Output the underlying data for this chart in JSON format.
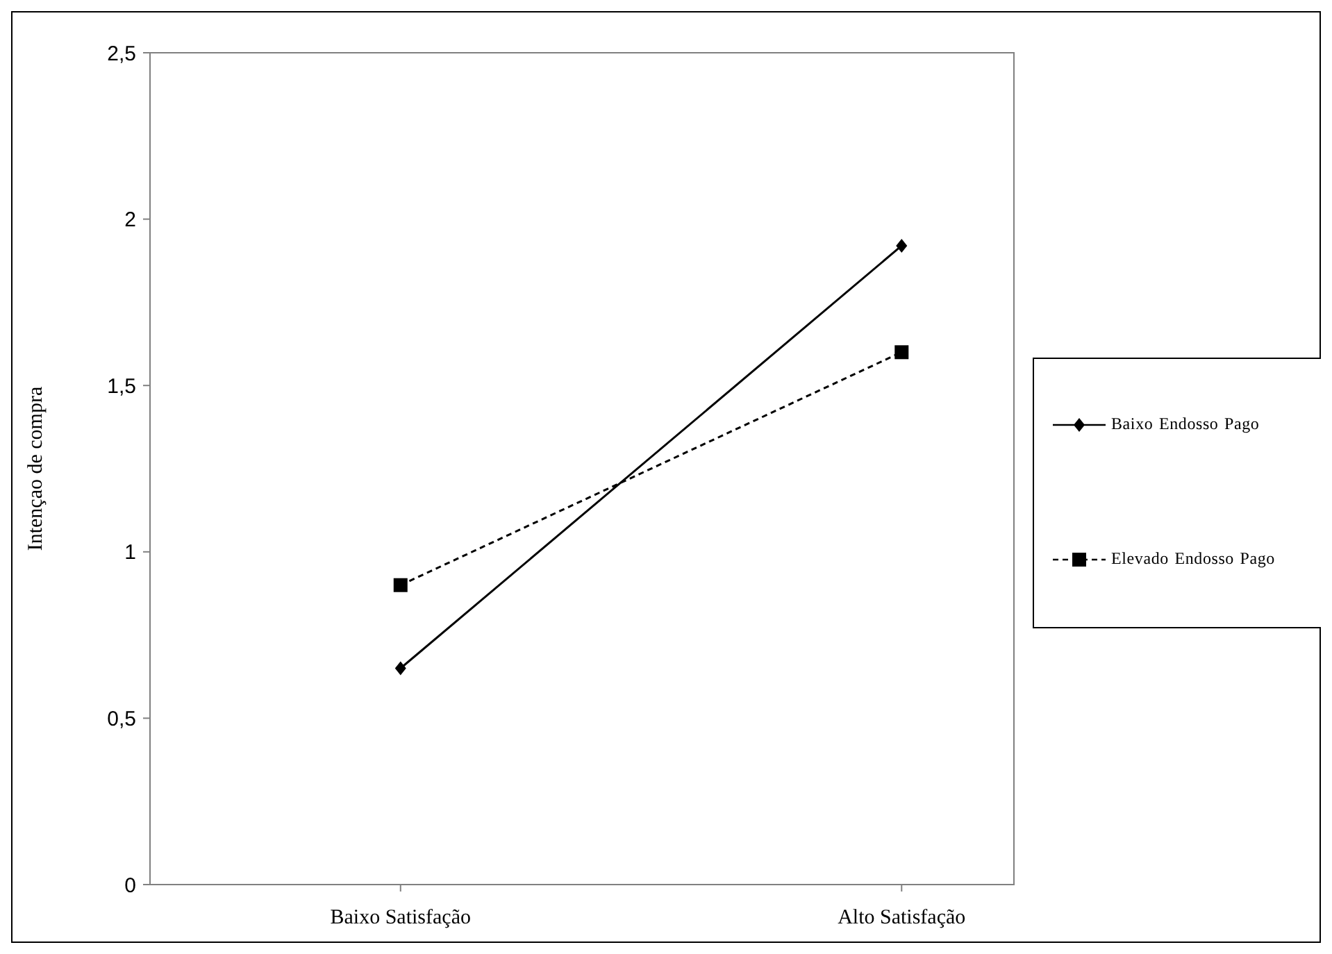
{
  "chart_data": {
    "type": "line",
    "ylabel": "Intençao de compra",
    "categories": [
      "Baixo Satisfação",
      "Alto Satisfação"
    ],
    "series": [
      {
        "name": "Baixo Endosso Pago",
        "color": "#000000",
        "values": [
          0.65,
          1.92
        ],
        "marker": "diamond",
        "line_style": "solid"
      },
      {
        "name": "Elevado Endosso Pago",
        "color": "#000000",
        "values": [
          0.9,
          1.6
        ],
        "marker": "square",
        "line_style": "dashed"
      }
    ],
    "ylim": [
      0,
      2.5
    ],
    "yticks": [
      0,
      {
        "value": 0.5,
        "label": "0,5"
      },
      1,
      {
        "value": 1.5,
        "label": "1,5"
      },
      2,
      {
        "value": 2.5,
        "label": "2,5"
      }
    ],
    "grid": false,
    "legend": "right"
  }
}
